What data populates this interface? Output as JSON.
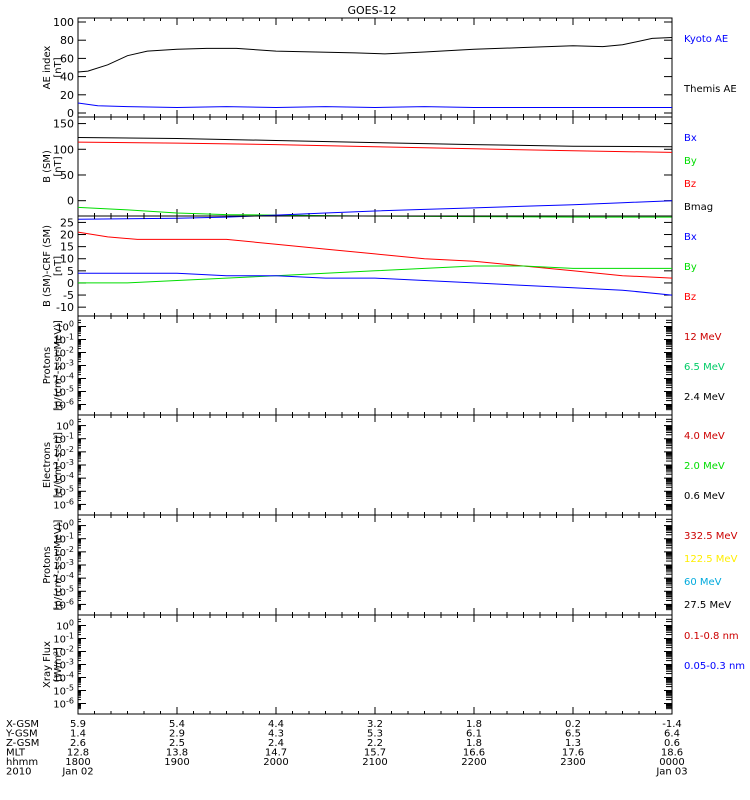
{
  "title": "GOES-12",
  "colors": {
    "black": "#000000",
    "blue": "#0000ff",
    "red": "#ff0000",
    "green": "#00dd00",
    "darkred": "#cc0000",
    "seagreen": "#00cc66",
    "yellow": "#ffee00",
    "cyan": "#00aadd"
  },
  "chart_data": [
    {
      "type": "line",
      "ylabel": [
        "AE index",
        "[nT]"
      ],
      "ylim": [
        0,
        100
      ],
      "yticks": [
        {
          "v": 0,
          "label": "0"
        },
        {
          "v": 20,
          "label": "20"
        },
        {
          "v": 40,
          "label": "40"
        },
        {
          "v": 60,
          "label": "60"
        },
        {
          "v": 80,
          "label": "80"
        },
        {
          "v": 100,
          "label": "100"
        }
      ],
      "legend": [
        {
          "label": "Kyoto AE",
          "color": "#0000ff"
        },
        {
          "label": "Themis AE",
          "color": "#000000"
        }
      ],
      "series": [
        {
          "color": "#000000",
          "x": [
            18.0,
            18.1,
            18.3,
            18.5,
            18.7,
            19.0,
            19.3,
            19.6,
            20.0,
            20.4,
            20.8,
            21.1,
            21.5,
            22.0,
            22.5,
            23.0,
            23.3,
            23.5,
            23.8,
            24.0
          ],
          "y": [
            45,
            46,
            53,
            63,
            68,
            70,
            71,
            71,
            68,
            67,
            66,
            65,
            67,
            70,
            72,
            74,
            73,
            75,
            82,
            83
          ]
        },
        {
          "color": "#0000ff",
          "x": [
            18.0,
            18.2,
            18.5,
            19.0,
            19.5,
            20.0,
            20.5,
            21.0,
            21.5,
            22.0,
            22.5,
            23.0,
            23.5,
            24.0
          ],
          "y": [
            11,
            8,
            7,
            6,
            7,
            6,
            7,
            6,
            7,
            6,
            6,
            6,
            6,
            6
          ]
        }
      ]
    },
    {
      "type": "line",
      "ylabel": [
        "B (SM)",
        "[nT]"
      ],
      "ylim": [
        -22,
        155
      ],
      "yticks": [
        {
          "v": 0,
          "label": "0"
        },
        {
          "v": 50,
          "label": "50"
        },
        {
          "v": 100,
          "label": "100"
        },
        {
          "v": 150,
          "label": "150"
        }
      ],
      "legend": [
        {
          "label": "Bx",
          "color": "#0000ff"
        },
        {
          "label": "By",
          "color": "#00dd00"
        },
        {
          "label": "Bz",
          "color": "#ff0000"
        },
        {
          "label": "Bmag",
          "color": "#000000"
        }
      ],
      "series": [
        {
          "color": "#000000",
          "x": [
            18,
            19,
            20,
            21,
            22,
            23,
            24
          ],
          "y": [
            123,
            121,
            117,
            113,
            109,
            106,
            105
          ]
        },
        {
          "color": "#ff0000",
          "x": [
            18,
            19,
            20,
            21,
            22,
            23,
            24
          ],
          "y": [
            114,
            112,
            109,
            105,
            101,
            97,
            94
          ]
        },
        {
          "color": "#00dd00",
          "x": [
            18,
            18.5,
            19,
            19.5,
            20,
            20.5,
            21,
            22,
            23,
            24
          ],
          "y": [
            -13,
            -18,
            -24,
            -27,
            -28,
            -29,
            -30,
            -31,
            -32,
            -32
          ]
        },
        {
          "color": "#0000ff",
          "x": [
            18,
            18.5,
            19,
            19.5,
            20,
            20.5,
            21,
            21.5,
            22,
            22.5,
            23,
            23.5,
            24
          ],
          "y": [
            -36,
            -35,
            -34,
            -32,
            -28,
            -24,
            -20,
            -17,
            -14,
            -11,
            -8,
            -4,
            0
          ]
        }
      ]
    },
    {
      "type": "line",
      "ylabel": [
        "B (SM)-CRF (SM)",
        "[nT]"
      ],
      "ylim": [
        -12,
        26
      ],
      "yticks": [
        {
          "v": -10,
          "label": "-10"
        },
        {
          "v": -5,
          "label": "-5"
        },
        {
          "v": 0,
          "label": "0"
        },
        {
          "v": 5,
          "label": "5"
        },
        {
          "v": 10,
          "label": "10"
        },
        {
          "v": 15,
          "label": "15"
        },
        {
          "v": 20,
          "label": "20"
        },
        {
          "v": 25,
          "label": "25"
        }
      ],
      "legend": [
        {
          "label": "Bx",
          "color": "#0000ff"
        },
        {
          "label": "By",
          "color": "#00dd00"
        },
        {
          "label": "Bz",
          "color": "#ff0000"
        }
      ],
      "series": [
        {
          "color": "#ff0000",
          "x": [
            18,
            18.3,
            18.6,
            19,
            19.5,
            20,
            20.5,
            21,
            21.5,
            22,
            22.5,
            23,
            23.5,
            24
          ],
          "y": [
            21,
            19,
            18,
            18,
            18,
            16,
            14,
            12,
            10,
            9,
            7,
            5,
            3,
            2
          ]
        },
        {
          "color": "#00dd00",
          "x": [
            18,
            18.5,
            19,
            19.5,
            20,
            20.5,
            21,
            21.5,
            22,
            22.5,
            23,
            23.5,
            24
          ],
          "y": [
            0,
            0,
            1,
            2,
            3,
            4,
            5,
            6,
            7,
            7,
            6,
            6,
            6
          ]
        },
        {
          "color": "#0000ff",
          "x": [
            18,
            18.5,
            19,
            19.5,
            20,
            20.5,
            21,
            21.5,
            22,
            22.5,
            23,
            23.5,
            24
          ],
          "y": [
            4,
            4,
            4,
            3,
            3,
            2,
            2,
            1,
            0,
            -1,
            -2,
            -3,
            -5
          ]
        }
      ]
    },
    {
      "type": "line",
      "ylabel": [
        "Protons",
        "[p/(cm²-s-sr-MeV)]"
      ],
      "log": true,
      "ylim": [
        -6.5,
        0.5
      ],
      "yticks": [
        {
          "v": 0,
          "base": "10",
          "exp": "0"
        },
        {
          "v": -1,
          "base": "10",
          "exp": "-1"
        },
        {
          "v": -2,
          "base": "10",
          "exp": "-2"
        },
        {
          "v": -3,
          "base": "10",
          "exp": "-3"
        },
        {
          "v": -4,
          "base": "10",
          "exp": "-4"
        },
        {
          "v": -5,
          "base": "10",
          "exp": "-5"
        },
        {
          "v": -6,
          "base": "10",
          "exp": "-6"
        }
      ],
      "legend": [
        {
          "label": "12 MeV",
          "color": "#cc0000"
        },
        {
          "label": "6.5 MeV",
          "color": "#00cc66"
        },
        {
          "label": "2.4 MeV",
          "color": "#000000"
        }
      ],
      "series": []
    },
    {
      "type": "line",
      "ylabel": [
        "Electrons",
        "[e/(cm²-s-sr)]"
      ],
      "log": true,
      "ylim": [
        -6.5,
        0.5
      ],
      "yticks": [
        {
          "v": 0,
          "base": "10",
          "exp": "0"
        },
        {
          "v": -1,
          "base": "10",
          "exp": "-1"
        },
        {
          "v": -2,
          "base": "10",
          "exp": "-2"
        },
        {
          "v": -3,
          "base": "10",
          "exp": "-3"
        },
        {
          "v": -4,
          "base": "10",
          "exp": "-4"
        },
        {
          "v": -5,
          "base": "10",
          "exp": "-5"
        },
        {
          "v": -6,
          "base": "10",
          "exp": "-6"
        }
      ],
      "legend": [
        {
          "label": "4.0 MeV",
          "color": "#cc0000"
        },
        {
          "label": "2.0 MeV",
          "color": "#00dd00"
        },
        {
          "label": "0.6 MeV",
          "color": "#000000"
        }
      ],
      "series": []
    },
    {
      "type": "line",
      "ylabel": [
        "Protons",
        "[p/(cm²-s-sr-MeV)]"
      ],
      "log": true,
      "ylim": [
        -6.5,
        0.5
      ],
      "yticks": [
        {
          "v": 0,
          "base": "10",
          "exp": "0"
        },
        {
          "v": -1,
          "base": "10",
          "exp": "-1"
        },
        {
          "v": -2,
          "base": "10",
          "exp": "-2"
        },
        {
          "v": -3,
          "base": "10",
          "exp": "-3"
        },
        {
          "v": -4,
          "base": "10",
          "exp": "-4"
        },
        {
          "v": -5,
          "base": "10",
          "exp": "-5"
        },
        {
          "v": -6,
          "base": "10",
          "exp": "-6"
        }
      ],
      "legend": [
        {
          "label": "332.5 MeV",
          "color": "#cc0000"
        },
        {
          "label": "122.5 MeV",
          "color": "#ffee00"
        },
        {
          "label": "60 MeV",
          "color": "#00aadd"
        },
        {
          "label": "27.5 MeV",
          "color": "#000000"
        }
      ],
      "series": []
    },
    {
      "type": "line",
      "ylabel": [
        "Xray Flux",
        "[W/m²]"
      ],
      "log": true,
      "ylim": [
        -6.5,
        0.5
      ],
      "yticks": [
        {
          "v": 0,
          "base": "10",
          "exp": "0"
        },
        {
          "v": -1,
          "base": "10",
          "exp": "-1"
        },
        {
          "v": -2,
          "base": "10",
          "exp": "-2"
        },
        {
          "v": -3,
          "base": "10",
          "exp": "-3"
        },
        {
          "v": -4,
          "base": "10",
          "exp": "-4"
        },
        {
          "v": -5,
          "base": "10",
          "exp": "-5"
        },
        {
          "v": -6,
          "base": "10",
          "exp": "-6"
        }
      ],
      "legend": [
        {
          "label": "0.1-0.8 nm",
          "color": "#cc0000"
        },
        {
          "label": "0.05-0.3 nm",
          "color": "#0000ff"
        }
      ],
      "series": []
    }
  ],
  "x_axis": {
    "xlim": [
      18,
      24
    ],
    "ticks": [
      18,
      19,
      20,
      21,
      22,
      23,
      24
    ],
    "rows": [
      {
        "label": "X-GSM",
        "values": [
          "5.9",
          "5.4",
          "4.4",
          "3.2",
          "1.8",
          "0.2",
          "-1.4"
        ]
      },
      {
        "label": "Y-GSM",
        "values": [
          "1.4",
          "2.9",
          "4.3",
          "5.3",
          "6.1",
          "6.5",
          "6.4"
        ]
      },
      {
        "label": "Z-GSM",
        "values": [
          "2.6",
          "2.5",
          "2.4",
          "2.2",
          "1.8",
          "1.3",
          "0.6"
        ]
      },
      {
        "label": "MLT",
        "values": [
          "12.8",
          "13.8",
          "14.7",
          "15.7",
          "16.6",
          "17.6",
          "18.6"
        ]
      },
      {
        "label": "hhmm",
        "values": [
          "1800",
          "1900",
          "2000",
          "2100",
          "2200",
          "2300",
          "0000"
        ]
      },
      {
        "label": "2010",
        "values": [
          "Jan 02",
          "",
          "",
          "",
          "",
          "",
          "Jan 03"
        ]
      }
    ]
  }
}
